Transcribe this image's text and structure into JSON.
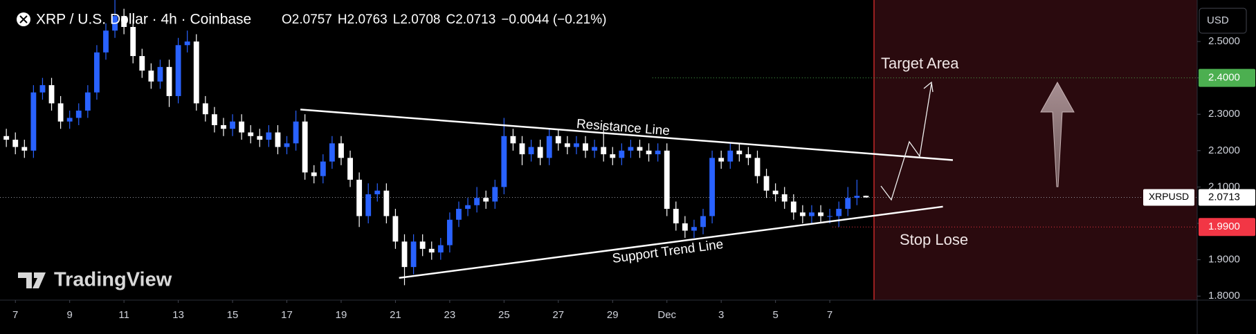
{
  "chart_data": {
    "type": "candlestick",
    "title": "XRP / U.S. Dollar · 4h · Coinbase",
    "legend_ohlc": [
      {
        "label": "O",
        "value": 2.0757
      },
      {
        "label": "H",
        "value": 2.0763
      },
      {
        "label": "L",
        "value": 2.0708
      },
      {
        "label": "C",
        "value": 2.0713
      }
    ],
    "change": "−0.0044 (−0.21%)",
    "currency": "USD",
    "watermark": "TradingView",
    "up_color": "#2962ff",
    "down_color": "#ffffff",
    "open": [
      2.24,
      2.23,
      2.21,
      2.2,
      2.36,
      2.38,
      2.33,
      2.28,
      2.29,
      2.31,
      2.36,
      2.47,
      2.53,
      2.57,
      2.54,
      2.46,
      2.42,
      2.39,
      2.43,
      2.35,
      2.49,
      2.5,
      2.33,
      2.3,
      2.27,
      2.26,
      2.28,
      2.25,
      2.24,
      2.23,
      2.25,
      2.21,
      2.22,
      2.28,
      2.14,
      2.13,
      2.17,
      2.22,
      2.18,
      2.12,
      2.02,
      2.08,
      2.09,
      2.02,
      1.95,
      1.88,
      1.95,
      1.93,
      1.92,
      1.94,
      2.01,
      2.04,
      2.05,
      2.07,
      2.06,
      2.1,
      2.24,
      2.22,
      2.19,
      2.21,
      2.18,
      2.24,
      2.22,
      2.21,
      2.22,
      2.2,
      2.21,
      2.19,
      2.18,
      2.2,
      2.21,
      2.2,
      2.19,
      2.2,
      2.04,
      2.0,
      1.98,
      1.99,
      2.02,
      2.18,
      2.17,
      2.2,
      2.19,
      2.18,
      2.13,
      2.09,
      2.08,
      2.06,
      2.03,
      2.02,
      2.03,
      2.02,
      2.02,
      2.04,
      2.07,
      2.0757
    ],
    "high": [
      2.26,
      2.25,
      2.23,
      2.38,
      2.4,
      2.4,
      2.35,
      2.31,
      2.33,
      2.38,
      2.49,
      2.55,
      2.62,
      2.59,
      2.56,
      2.48,
      2.44,
      2.45,
      2.45,
      2.51,
      2.53,
      2.52,
      2.35,
      2.32,
      2.29,
      2.3,
      2.3,
      2.27,
      2.26,
      2.27,
      2.27,
      2.24,
      2.31,
      2.3,
      2.16,
      2.19,
      2.24,
      2.24,
      2.2,
      2.14,
      2.11,
      2.11,
      2.11,
      2.04,
      1.97,
      1.97,
      1.97,
      1.95,
      1.96,
      2.03,
      2.06,
      2.07,
      2.1,
      2.09,
      2.12,
      2.29,
      2.26,
      2.24,
      2.23,
      2.23,
      2.26,
      2.26,
      2.24,
      2.24,
      2.24,
      2.23,
      2.27,
      2.21,
      2.22,
      2.23,
      2.23,
      2.22,
      2.22,
      2.22,
      2.06,
      2.02,
      2.01,
      2.04,
      2.2,
      2.2,
      2.22,
      2.22,
      2.21,
      2.2,
      2.15,
      2.11,
      2.1,
      2.08,
      2.05,
      2.05,
      2.05,
      2.04,
      2.06,
      2.1,
      2.12,
      2.0763
    ],
    "low": [
      2.21,
      2.19,
      2.18,
      2.18,
      2.34,
      2.31,
      2.26,
      2.26,
      2.27,
      2.29,
      2.34,
      2.45,
      2.51,
      2.52,
      2.44,
      2.4,
      2.37,
      2.37,
      2.32,
      2.33,
      2.47,
      2.31,
      2.28,
      2.25,
      2.24,
      2.24,
      2.23,
      2.22,
      2.21,
      2.21,
      2.19,
      2.19,
      2.2,
      2.12,
      2.11,
      2.11,
      2.15,
      2.16,
      2.1,
      1.99,
      2.0,
      2.06,
      2.0,
      1.93,
      1.83,
      1.86,
      1.91,
      1.9,
      1.9,
      1.92,
      1.99,
      2.02,
      2.03,
      2.04,
      2.04,
      2.08,
      2.2,
      2.16,
      2.17,
      2.16,
      2.16,
      2.2,
      2.19,
      2.19,
      2.18,
      2.18,
      2.17,
      2.16,
      2.16,
      2.18,
      2.18,
      2.17,
      2.17,
      2.02,
      1.98,
      1.96,
      1.96,
      1.97,
      2.0,
      2.15,
      2.15,
      2.17,
      2.16,
      2.11,
      2.07,
      2.06,
      2.04,
      2.01,
      2.0,
      2.0,
      2.0,
      2.0,
      1.99,
      2.02,
      2.05,
      2.0708
    ],
    "close": [
      2.23,
      2.21,
      2.2,
      2.36,
      2.38,
      2.33,
      2.28,
      2.29,
      2.31,
      2.36,
      2.47,
      2.53,
      2.57,
      2.54,
      2.46,
      2.42,
      2.39,
      2.43,
      2.35,
      2.49,
      2.5,
      2.33,
      2.3,
      2.27,
      2.26,
      2.28,
      2.25,
      2.24,
      2.23,
      2.25,
      2.21,
      2.22,
      2.28,
      2.14,
      2.13,
      2.17,
      2.22,
      2.18,
      2.12,
      2.02,
      2.08,
      2.09,
      2.02,
      1.95,
      1.88,
      1.95,
      1.93,
      1.92,
      1.94,
      2.01,
      2.04,
      2.05,
      2.07,
      2.06,
      2.1,
      2.24,
      2.22,
      2.19,
      2.21,
      2.18,
      2.24,
      2.22,
      2.21,
      2.22,
      2.2,
      2.21,
      2.19,
      2.18,
      2.2,
      2.21,
      2.2,
      2.19,
      2.2,
      2.04,
      2.0,
      1.98,
      1.99,
      2.02,
      2.18,
      2.17,
      2.2,
      2.19,
      2.18,
      2.13,
      2.09,
      2.08,
      2.06,
      2.03,
      2.02,
      2.03,
      2.02,
      2.02,
      2.04,
      2.07,
      2.0757,
      2.0713
    ],
    "xlim": [
      -0.7,
      131.6
    ],
    "xticks": [
      {
        "value": 1,
        "label": "7"
      },
      {
        "value": 7,
        "label": "9"
      },
      {
        "value": 13,
        "label": "11"
      },
      {
        "value": 19,
        "label": "13"
      },
      {
        "value": 25,
        "label": "15"
      },
      {
        "value": 31,
        "label": "17"
      },
      {
        "value": 37,
        "label": "19"
      },
      {
        "value": 43,
        "label": "21"
      },
      {
        "value": 49,
        "label": "23"
      },
      {
        "value": 55,
        "label": "25"
      },
      {
        "value": 61,
        "label": "27"
      },
      {
        "value": 67,
        "label": "29"
      },
      {
        "value": 73,
        "label": "Dec"
      },
      {
        "value": 79,
        "label": "3"
      },
      {
        "value": 85,
        "label": "5"
      },
      {
        "value": 91,
        "label": "7"
      }
    ],
    "ylim": [
      1.789,
      2.597
    ],
    "yticks": [
      {
        "value": 1.8,
        "label": "1.8000"
      },
      {
        "value": 1.9,
        "label": "1.9000"
      },
      {
        "value": 2.0,
        "label": "2.0000"
      },
      {
        "value": 2.1,
        "label": "2.1000"
      },
      {
        "value": 2.2,
        "label": "2.2000"
      },
      {
        "value": 2.3,
        "label": "2.3000"
      },
      {
        "value": 2.4,
        "label": "2.4000"
      },
      {
        "value": 2.5,
        "label": "2.5000"
      }
    ],
    "current_price": {
      "symbol": "XRPUSD",
      "value": 2.0713
    },
    "levels": [
      {
        "name": "Target Area",
        "value": 2.4,
        "label": "2.4000",
        "color": "#4caf50",
        "from": 71.4
      },
      {
        "name": "Stop Lose",
        "value": 1.99,
        "label": "1.9900",
        "color": "#f23645",
        "from": 91.3
      }
    ],
    "trendlines": [
      {
        "name": "Resistance Line",
        "points": [
          [
            32.5,
            2.313
          ],
          [
            104.6,
            2.174
          ]
        ]
      },
      {
        "name": "Support Trend Line",
        "points": [
          [
            43.4,
            1.85
          ],
          [
            103.5,
            2.046
          ]
        ]
      }
    ]
  }
}
